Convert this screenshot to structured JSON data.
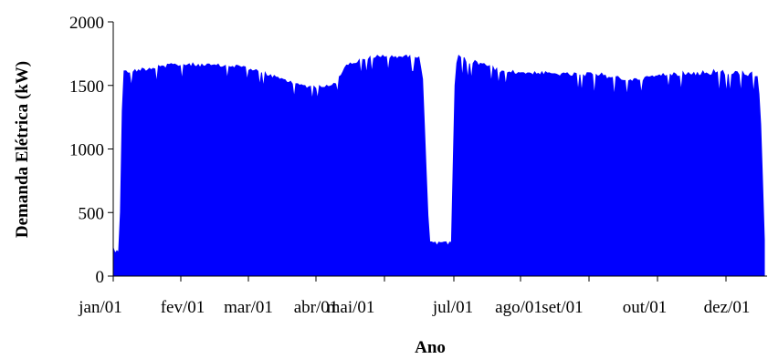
{
  "chart_data": {
    "type": "area",
    "title": "",
    "xlabel": "Ano",
    "ylabel": "Demanda Elétrica (kW)",
    "ylim": [
      0,
      2000
    ],
    "yticks": [
      0,
      500,
      1000,
      1500,
      2000
    ],
    "ytick_labels": [
      "0",
      "500",
      "1000",
      "1500",
      "2000"
    ],
    "x_categories": [
      "jan/01",
      "fev/01",
      "mar/01",
      "abr/01",
      "mai/01",
      "jul/01",
      "ago/01",
      "set/01",
      "out/01",
      "dez/01"
    ],
    "series_color": "#0000ff",
    "grid": false,
    "legend": "none",
    "envelope": {
      "x_range": [
        0,
        10
      ],
      "x": [
        0,
        0.1,
        0.15,
        1,
        2,
        2.6,
        3,
        3.4,
        3.6,
        4,
        4.5,
        4.7,
        4.75,
        4.85,
        5.2,
        5.25,
        5.3,
        6,
        7,
        7.5,
        8,
        8.5,
        9,
        9.5,
        9.9,
        9.95,
        10
      ],
      "peak": [
        240,
        240,
        1620,
        1680,
        1660,
        1560,
        1500,
        1520,
        1680,
        1740,
        1740,
        1750,
        1560,
        270,
        270,
        1650,
        1740,
        1620,
        1600,
        1600,
        1560,
        1600,
        1620,
        1630,
        1600,
        1200,
        300
      ],
      "base": [
        0,
        0,
        1480,
        1540,
        1550,
        1420,
        1380,
        1410,
        1560,
        1600,
        1620,
        1600,
        1500,
        240,
        240,
        1500,
        1560,
        1500,
        1470,
        1400,
        1420,
        1480,
        1420,
        1440,
        1430,
        900,
        200
      ]
    }
  }
}
